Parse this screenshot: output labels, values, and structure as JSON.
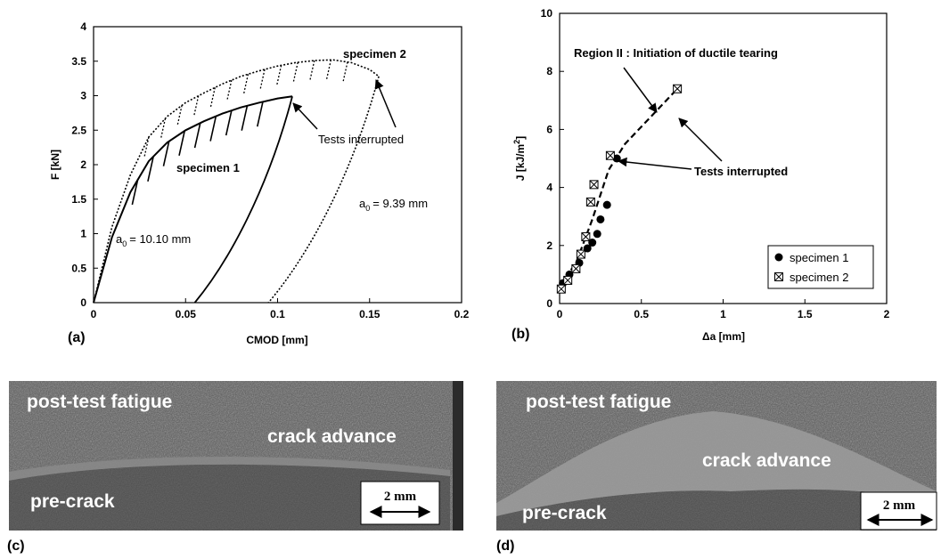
{
  "chart_data": [
    {
      "type": "line",
      "panel_label": "(a)",
      "xlabel": "CMOD [mm]",
      "ylabel": "F [kN]",
      "xlim": [
        0,
        0.2
      ],
      "ylim": [
        0,
        4
      ],
      "xticks": [
        "0",
        "0.05",
        "0.1",
        "0.15",
        "0.2"
      ],
      "yticks": [
        "0",
        "0.5",
        "1",
        "1.5",
        "2",
        "2.5",
        "3",
        "3.5",
        "4"
      ],
      "series": [
        {
          "name": "specimen 1",
          "style": "solid",
          "a0_label": "a",
          "a0_sub": "0",
          "a0_value": "= 10.10 mm",
          "x": [
            0,
            0.01,
            0.02,
            0.03,
            0.04,
            0.05,
            0.06,
            0.07,
            0.08,
            0.09,
            0.1,
            0.108
          ],
          "y": [
            0,
            0.95,
            1.6,
            2.05,
            2.32,
            2.5,
            2.63,
            2.74,
            2.83,
            2.9,
            2.96,
            2.99
          ],
          "unload_end_x": 0.055
        },
        {
          "name": "specimen 2",
          "style": "dotted",
          "a0_label": "a",
          "a0_sub": "0",
          "a0_value": "= 9.39 mm",
          "x": [
            0,
            0.01,
            0.02,
            0.03,
            0.04,
            0.05,
            0.06,
            0.07,
            0.08,
            0.09,
            0.1,
            0.11,
            0.12,
            0.13,
            0.14,
            0.15,
            0.155
          ],
          "y": [
            0,
            1.1,
            1.85,
            2.4,
            2.7,
            2.9,
            3.04,
            3.17,
            3.28,
            3.36,
            3.43,
            3.48,
            3.51,
            3.52,
            3.48,
            3.38,
            3.28
          ],
          "unload_end_x": 0.095
        }
      ],
      "annotations": [
        "specimen 1",
        "specimen 2",
        "Tests interrupted"
      ]
    },
    {
      "type": "scatter",
      "panel_label": "(b)",
      "xlabel": "Δa [mm]",
      "ylabel_main": "J [kJ/m",
      "ylabel_sup": "2",
      "ylabel_end": "]",
      "xlim": [
        0,
        2
      ],
      "ylim": [
        0,
        10
      ],
      "xticks": [
        "0",
        "0.5",
        "1",
        "1.5",
        "2"
      ],
      "yticks": [
        "0",
        "2",
        "4",
        "6",
        "8",
        "10"
      ],
      "series": [
        {
          "name": "specimen 1",
          "marker": "filled-circle",
          "x": [
            0.02,
            0.06,
            0.12,
            0.17,
            0.2,
            0.23,
            0.25,
            0.29,
            0.35
          ],
          "y": [
            0.7,
            1.0,
            1.4,
            1.9,
            2.1,
            2.4,
            2.9,
            3.4,
            5.0
          ]
        },
        {
          "name": "specimen 2",
          "marker": "crossed-square",
          "x": [
            0.01,
            0.05,
            0.1,
            0.13,
            0.16,
            0.19,
            0.21,
            0.31,
            0.72
          ],
          "y": [
            0.5,
            0.8,
            1.2,
            1.7,
            2.3,
            3.5,
            4.1,
            5.1,
            7.4
          ]
        }
      ],
      "trend": {
        "style": "dashed",
        "x": [
          0,
          0.1,
          0.2,
          0.3,
          0.4,
          0.72
        ],
        "y": [
          0.6,
          1.4,
          2.9,
          4.6,
          5.5,
          7.4
        ]
      },
      "annotations": [
        "Region II : Initiation of ductile tearing",
        "Tests interrupted"
      ],
      "legend_position": "bottom-right"
    }
  ],
  "photos": [
    {
      "panel_label": "(c)",
      "labels": {
        "top": "post-test fatigue",
        "middle": "crack advance",
        "bottom": "pre-crack"
      },
      "scale_bar": "2 mm"
    },
    {
      "panel_label": "(d)",
      "labels": {
        "top": "post-test fatigue",
        "middle": "crack advance",
        "bottom": "pre-crack"
      },
      "scale_bar": "2 mm"
    }
  ]
}
